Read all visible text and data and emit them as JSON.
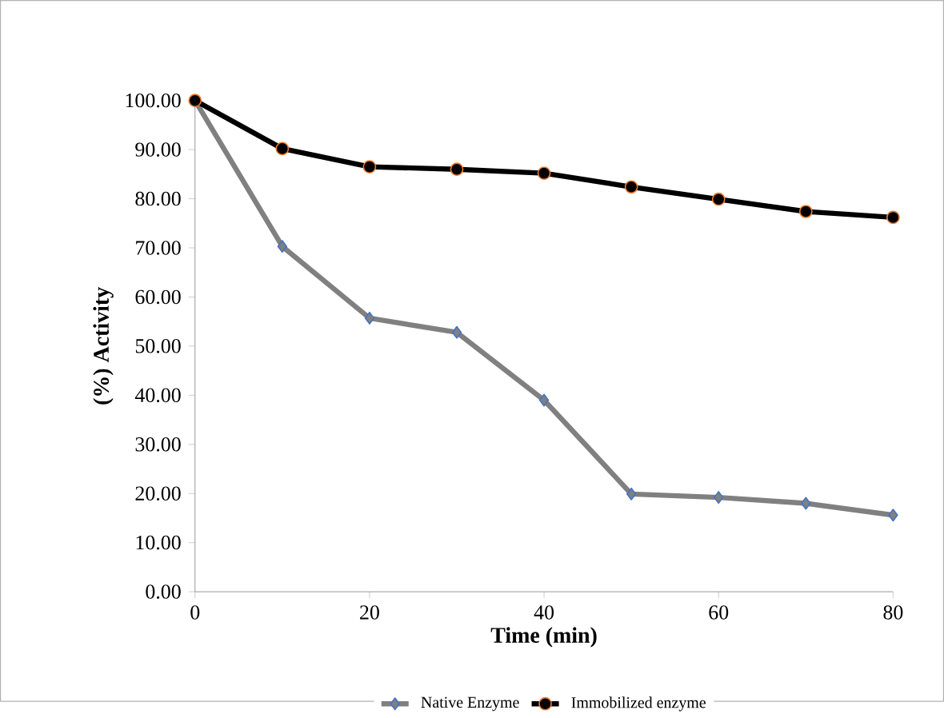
{
  "chart_data": {
    "type": "line",
    "xlabel": "Time (min)",
    "ylabel": "(%) Activity",
    "x": [
      0,
      10,
      20,
      30,
      40,
      50,
      60,
      70,
      80
    ],
    "series": [
      {
        "name": "Native Enzyme",
        "color": "#808080",
        "marker": "diamond",
        "values": [
          100,
          70.3,
          55.7,
          52.8,
          39.0,
          19.9,
          19.2,
          18.0,
          15.6
        ]
      },
      {
        "name": "Immobilized enzyme",
        "color": "#000000",
        "marker": "circle",
        "values": [
          100,
          90.2,
          86.5,
          86.0,
          85.2,
          82.4,
          79.9,
          77.4,
          76.2
        ]
      }
    ],
    "xlim": [
      0,
      80
    ],
    "xticks": [
      0,
      20,
      40,
      60,
      80
    ],
    "ylim": [
      0,
      100
    ],
    "yticks": [
      {
        "value": 0,
        "label": "0.00"
      },
      {
        "value": 10,
        "label": "10.00"
      },
      {
        "value": 20,
        "label": "20.00"
      },
      {
        "value": 30,
        "label": "30.00"
      },
      {
        "value": 40,
        "label": "40.00"
      },
      {
        "value": 50,
        "label": "50.00"
      },
      {
        "value": 60,
        "label": "60.00"
      },
      {
        "value": 70,
        "label": "70.00"
      },
      {
        "value": 80,
        "label": "80.00"
      },
      {
        "value": 90,
        "label": "90.00"
      },
      {
        "value": 100,
        "label": "100.00"
      }
    ],
    "grid": false,
    "legend": "bottom",
    "line_style": "solid"
  }
}
